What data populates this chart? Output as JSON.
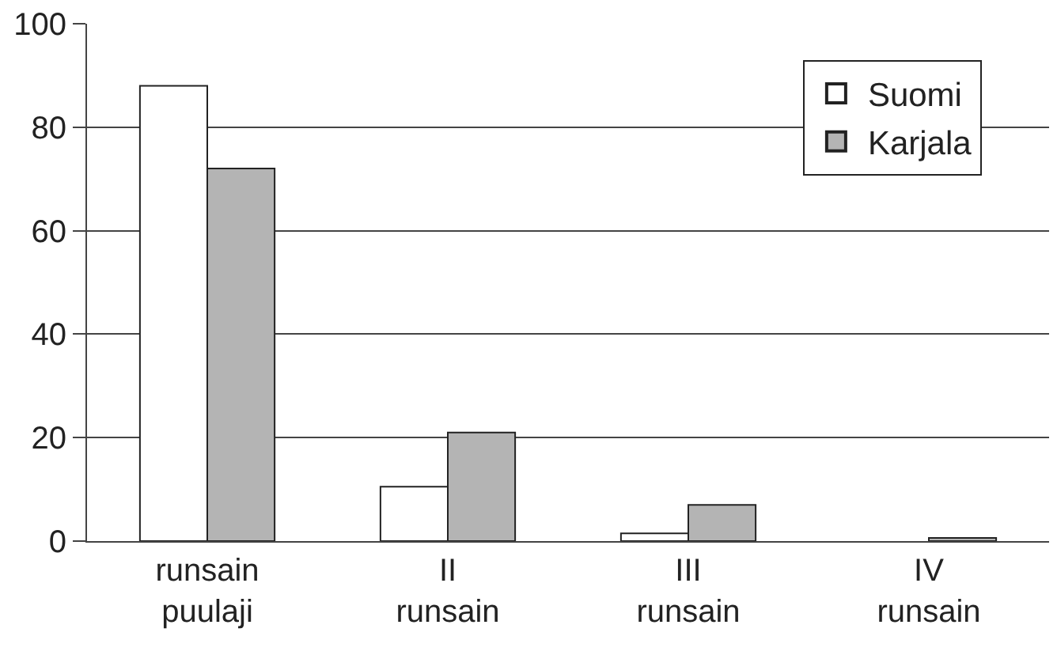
{
  "chart_data": {
    "type": "bar",
    "categories": [
      "runsain\npuulaji",
      "II\nrunsain",
      "III\nrunsain",
      "IV\nrunsain"
    ],
    "series": [
      {
        "name": "Suomi",
        "color": "#ffffff",
        "values": [
          88,
          10.5,
          1.5,
          null
        ]
      },
      {
        "name": "Karjala",
        "color": "#b4b4b4",
        "values": [
          72,
          21,
          7,
          0.6
        ]
      }
    ],
    "ylim": [
      0,
      100
    ],
    "yticks": [
      0,
      20,
      40,
      60,
      80,
      100
    ],
    "grid": "y",
    "legend": "top right"
  }
}
